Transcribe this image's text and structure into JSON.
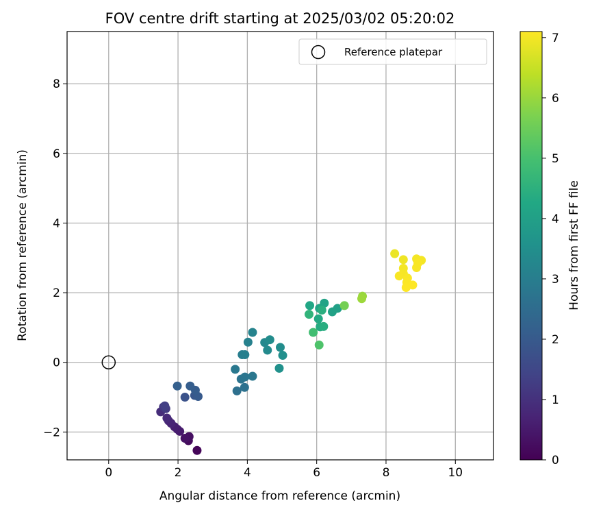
{
  "chart_data": {
    "type": "scatter",
    "title": "FOV centre drift starting at 2025/03/02 05:20:02",
    "xlabel": "Angular distance from reference (arcmin)",
    "ylabel": "Rotation from reference (arcmin)",
    "xlim": [
      -1.2,
      11.1
    ],
    "ylim": [
      -2.8,
      9.5
    ],
    "xticks": [
      "0",
      "2",
      "4",
      "6",
      "8",
      "10"
    ],
    "xtick_values": [
      0,
      2,
      4,
      6,
      8,
      10
    ],
    "yticks": [
      "−2",
      "0",
      "2",
      "4",
      "6",
      "8"
    ],
    "ytick_values": [
      -2,
      0,
      2,
      4,
      6,
      8
    ],
    "grid": true,
    "legend": {
      "placement": "top-right",
      "entries": [
        {
          "label": "Reference platepar",
          "marker": "open-circle"
        }
      ]
    },
    "reference_point": {
      "x": 0,
      "y": 0
    },
    "colorbar": {
      "label": "Hours from first FF file",
      "range": [
        0,
        7.1
      ],
      "ticks": [
        "0",
        "1",
        "2",
        "3",
        "4",
        "5",
        "6",
        "7"
      ],
      "tick_values": [
        0,
        1,
        2,
        3,
        4,
        5,
        6,
        7
      ],
      "colormap": "viridis"
    },
    "series": [
      {
        "points": [
          {
            "x": 2.55,
            "y": -2.53,
            "c": 0.1
          },
          {
            "x": 2.3,
            "y": -2.25,
            "c": 0.2
          },
          {
            "x": 2.32,
            "y": -2.13,
            "c": 0.3
          },
          {
            "x": 2.2,
            "y": -2.18,
            "c": 0.35
          },
          {
            "x": 2.05,
            "y": -1.98,
            "c": 0.5
          },
          {
            "x": 1.98,
            "y": -1.92,
            "c": 0.55
          },
          {
            "x": 1.9,
            "y": -1.85,
            "c": 0.6
          },
          {
            "x": 1.8,
            "y": -1.75,
            "c": 0.7
          },
          {
            "x": 1.73,
            "y": -1.68,
            "c": 0.75
          },
          {
            "x": 1.68,
            "y": -1.6,
            "c": 0.85
          },
          {
            "x": 1.5,
            "y": -1.42,
            "c": 0.9
          },
          {
            "x": 1.58,
            "y": -1.28,
            "c": 1.1
          },
          {
            "x": 1.65,
            "y": -1.33,
            "c": 1.2
          },
          {
            "x": 1.62,
            "y": -1.25,
            "c": 1.3
          },
          {
            "x": 2.2,
            "y": -1.0,
            "c": 1.8
          },
          {
            "x": 2.48,
            "y": -0.95,
            "c": 1.9
          },
          {
            "x": 2.58,
            "y": -0.98,
            "c": 2.0
          },
          {
            "x": 2.5,
            "y": -0.8,
            "c": 2.05
          },
          {
            "x": 2.35,
            "y": -0.68,
            "c": 2.1
          },
          {
            "x": 1.98,
            "y": -0.68,
            "c": 2.15
          },
          {
            "x": 3.7,
            "y": -0.82,
            "c": 2.6
          },
          {
            "x": 3.92,
            "y": -0.72,
            "c": 2.65
          },
          {
            "x": 3.82,
            "y": -0.48,
            "c": 2.7
          },
          {
            "x": 3.93,
            "y": -0.42,
            "c": 2.75
          },
          {
            "x": 4.15,
            "y": -0.4,
            "c": 2.8
          },
          {
            "x": 3.65,
            "y": -0.2,
            "c": 2.85
          },
          {
            "x": 3.85,
            "y": 0.22,
            "c": 3.0
          },
          {
            "x": 3.93,
            "y": 0.22,
            "c": 3.05
          },
          {
            "x": 4.02,
            "y": 0.58,
            "c": 3.1
          },
          {
            "x": 4.15,
            "y": 0.86,
            "c": 3.15
          },
          {
            "x": 4.5,
            "y": 0.57,
            "c": 3.3
          },
          {
            "x": 4.58,
            "y": 0.35,
            "c": 3.35
          },
          {
            "x": 4.65,
            "y": 0.65,
            "c": 3.4
          },
          {
            "x": 4.95,
            "y": 0.43,
            "c": 3.45
          },
          {
            "x": 5.02,
            "y": 0.2,
            "c": 3.5
          },
          {
            "x": 4.92,
            "y": -0.17,
            "c": 3.55
          },
          {
            "x": 6.6,
            "y": 1.55,
            "c": 4.0
          },
          {
            "x": 6.45,
            "y": 1.45,
            "c": 4.05
          },
          {
            "x": 6.22,
            "y": 1.7,
            "c": 4.1
          },
          {
            "x": 6.08,
            "y": 1.55,
            "c": 4.15
          },
          {
            "x": 5.8,
            "y": 1.63,
            "c": 4.2
          },
          {
            "x": 6.05,
            "y": 1.25,
            "c": 4.3
          },
          {
            "x": 6.1,
            "y": 1.02,
            "c": 4.35
          },
          {
            "x": 6.2,
            "y": 1.03,
            "c": 4.4
          },
          {
            "x": 6.15,
            "y": 1.5,
            "c": 4.45
          },
          {
            "x": 5.78,
            "y": 1.38,
            "c": 4.6
          },
          {
            "x": 5.9,
            "y": 0.86,
            "c": 4.9
          },
          {
            "x": 6.07,
            "y": 0.5,
            "c": 5.1
          },
          {
            "x": 6.8,
            "y": 1.63,
            "c": 5.6
          },
          {
            "x": 7.32,
            "y": 1.9,
            "c": 6.0
          },
          {
            "x": 7.3,
            "y": 1.83,
            "c": 6.05
          },
          {
            "x": 8.25,
            "y": 3.12,
            "c": 6.9
          },
          {
            "x": 8.5,
            "y": 2.95,
            "c": 6.95
          },
          {
            "x": 8.88,
            "y": 2.97,
            "c": 7.0
          },
          {
            "x": 9.02,
            "y": 2.93,
            "c": 7.0
          },
          {
            "x": 8.92,
            "y": 2.85,
            "c": 7.05
          },
          {
            "x": 8.88,
            "y": 2.72,
            "c": 7.05
          },
          {
            "x": 8.5,
            "y": 2.7,
            "c": 7.0
          },
          {
            "x": 8.5,
            "y": 2.55,
            "c": 7.02
          },
          {
            "x": 8.38,
            "y": 2.48,
            "c": 7.04
          },
          {
            "x": 8.62,
            "y": 2.42,
            "c": 7.06
          },
          {
            "x": 8.6,
            "y": 2.3,
            "c": 7.08
          },
          {
            "x": 8.77,
            "y": 2.22,
            "c": 7.1
          },
          {
            "x": 8.58,
            "y": 2.15,
            "c": 7.1
          }
        ]
      }
    ]
  }
}
